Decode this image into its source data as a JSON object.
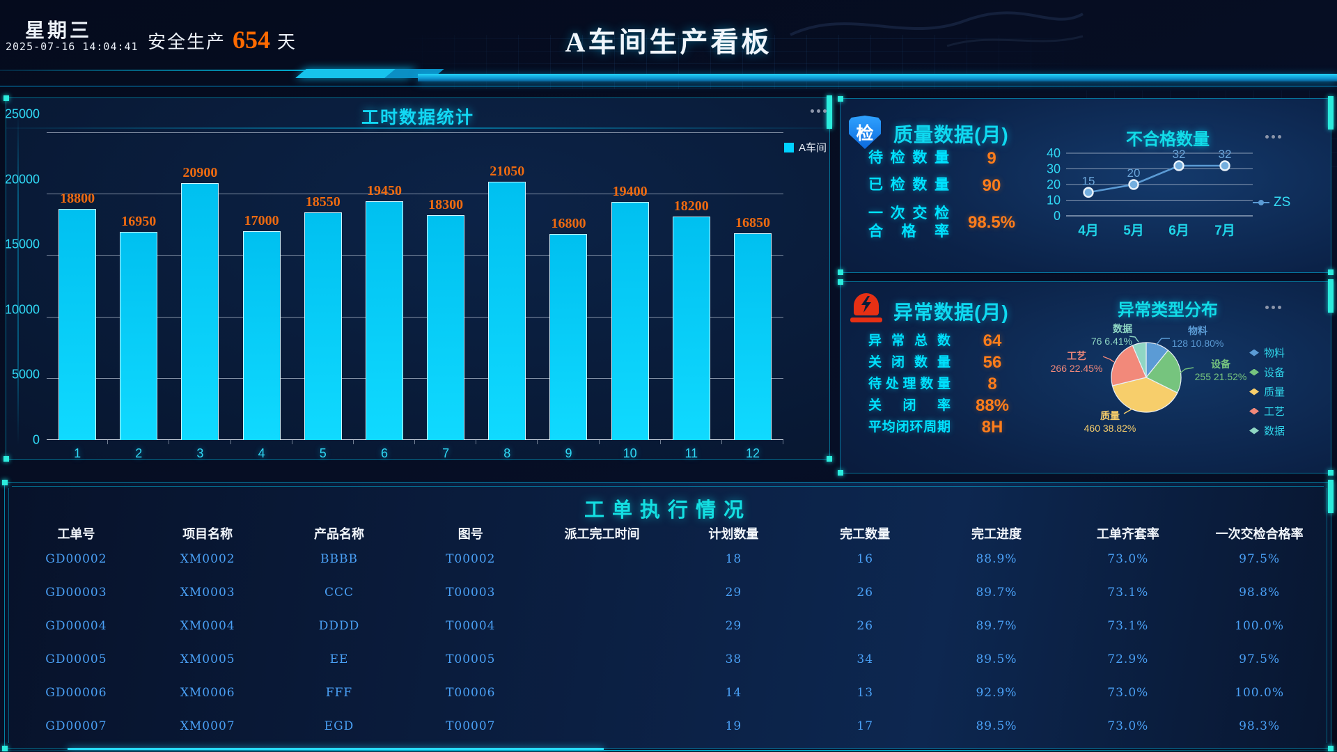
{
  "header": {
    "weekday": "星期三",
    "datetime": "2025-07-16 14:04:41",
    "safety_prefix": "安全生产",
    "safety_days": "654",
    "safety_unit": "天",
    "title": "A车间生产看板"
  },
  "chart_data": [
    {
      "type": "bar",
      "title": "工时数据统计",
      "categories": [
        "1",
        "2",
        "3",
        "4",
        "5",
        "6",
        "7",
        "8",
        "9",
        "10",
        "11",
        "12"
      ],
      "series": [
        {
          "name": "A车间",
          "values": [
            18800,
            16950,
            20900,
            17000,
            18550,
            19450,
            18300,
            21050,
            16800,
            19400,
            18200,
            16850
          ]
        }
      ],
      "ylim": [
        0,
        25000
      ],
      "yticks": [
        0,
        5000,
        10000,
        15000,
        20000,
        25000
      ],
      "bar_color": "#00d2ff",
      "value_label_color": "#ee6a10",
      "grid": true,
      "legend_position": "top-right"
    },
    {
      "type": "line",
      "title": "不合格数量",
      "categories": [
        "4月",
        "5月",
        "6月",
        "7月"
      ],
      "series": [
        {
          "name": "ZS",
          "values": [
            15,
            20,
            32,
            32
          ]
        }
      ],
      "ylim": [
        0,
        40
      ],
      "yticks": [
        0,
        10,
        20,
        30,
        40
      ],
      "line_color": "#5b9bd5",
      "grid": true,
      "legend_position": "right"
    },
    {
      "type": "pie",
      "title": "异常类型分布",
      "slices": [
        {
          "label": "物料",
          "value": 128,
          "pct": "10.80%",
          "color": "#5b9bd5"
        },
        {
          "label": "设备",
          "value": 255,
          "pct": "21.52%",
          "color": "#76c47e"
        },
        {
          "label": "质量",
          "value": 460,
          "pct": "38.82%",
          "color": "#f7ce6b"
        },
        {
          "label": "工艺",
          "value": 266,
          "pct": "22.45%",
          "color": "#f2897a"
        },
        {
          "label": "数据",
          "value": 76,
          "pct": "6.41%",
          "color": "#8fd6c3"
        }
      ],
      "legend_position": "right"
    }
  ],
  "quality_panel": {
    "icon_char": "检",
    "title": "质量数据(月)",
    "stats": [
      {
        "label": [
          "待检数量"
        ],
        "value": "9"
      },
      {
        "label": [
          "已检数量"
        ],
        "value": "90"
      },
      {
        "label": [
          "一次交检",
          "合格率"
        ],
        "value": "98.5%"
      }
    ]
  },
  "anomaly_panel": {
    "title": "异常数据(月)",
    "stats": [
      {
        "label": [
          "异常总数"
        ],
        "value": "64"
      },
      {
        "label": [
          "关闭数量"
        ],
        "value": "56"
      },
      {
        "label": [
          "待处理数量"
        ],
        "value": "8"
      },
      {
        "label": [
          "关闭率"
        ],
        "value": "88%"
      },
      {
        "label": [
          "平均闭环周期"
        ],
        "value": "8H"
      }
    ]
  },
  "work_orders": {
    "title": "工单执行情况",
    "columns": [
      "工单号",
      "项目名称",
      "产品名称",
      "图号",
      "派工完工时间",
      "计划数量",
      "完工数量",
      "完工进度",
      "工单齐套率",
      "一次交检合格率"
    ],
    "rows": [
      [
        "GD00002",
        "XM0002",
        "BBBB",
        "T00002",
        "",
        "18",
        "16",
        "88.9%",
        "73.0%",
        "97.5%"
      ],
      [
        "GD00003",
        "XM0003",
        "CCC",
        "T00003",
        "",
        "29",
        "26",
        "89.7%",
        "73.1%",
        "98.8%"
      ],
      [
        "GD00004",
        "XM0004",
        "DDDD",
        "T00004",
        "",
        "29",
        "26",
        "89.7%",
        "73.1%",
        "100.0%"
      ],
      [
        "GD00005",
        "XM0005",
        "EE",
        "T00005",
        "",
        "38",
        "34",
        "89.5%",
        "72.9%",
        "97.5%"
      ],
      [
        "GD00006",
        "XM0006",
        "FFF",
        "T00006",
        "",
        "14",
        "13",
        "92.9%",
        "73.0%",
        "100.0%"
      ],
      [
        "GD00007",
        "XM0007",
        "EGD",
        "T00007",
        "",
        "19",
        "17",
        "89.5%",
        "73.0%",
        "98.3%"
      ]
    ]
  }
}
